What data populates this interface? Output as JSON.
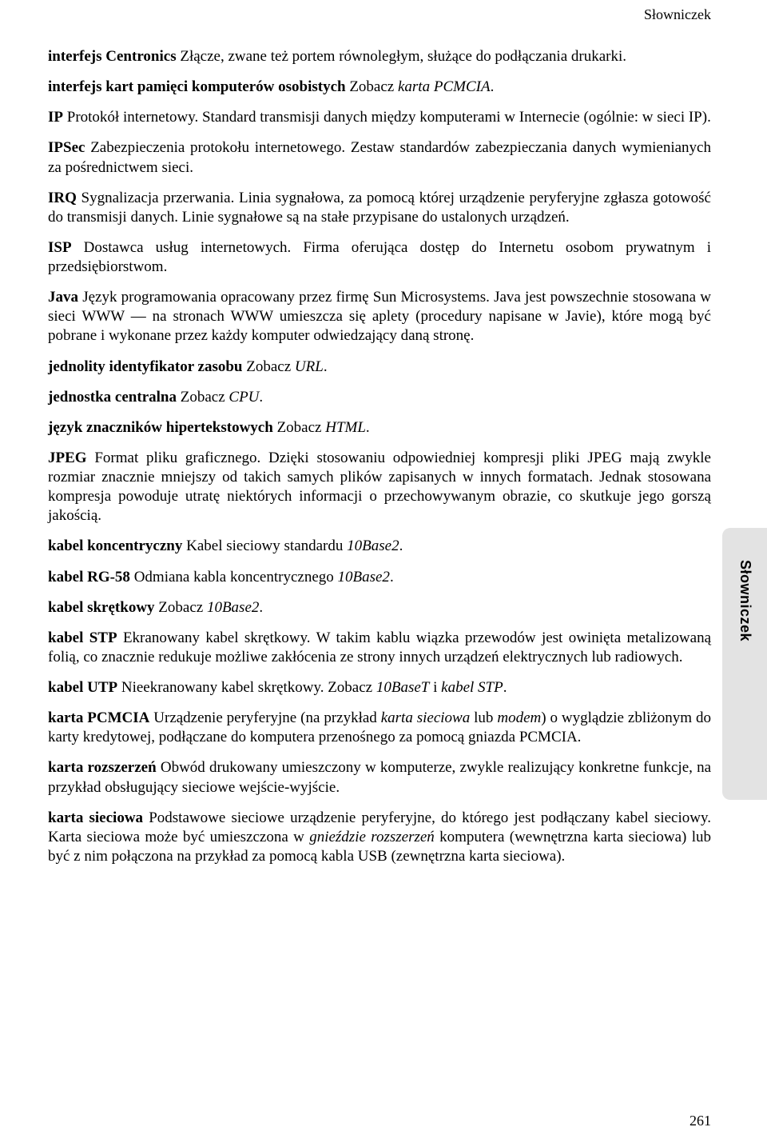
{
  "header": {
    "section": "Słowniczek"
  },
  "sideTab": {
    "label": "Słowniczek"
  },
  "pageNumber": "261",
  "entries": [
    {
      "term": "interfejs Centronics",
      "sep": "   ",
      "def": "Złącze, zwane też portem równoległym, służące do podłączania drukarki."
    },
    {
      "term": "interfejs kart pamięci komputerów osobistych",
      "sep": "   ",
      "def": "Zobacz ",
      "italic1": "karta PCMCIA",
      "after1": "."
    },
    {
      "term": "IP",
      "sep": "   ",
      "def": "Protokół internetowy. Standard transmisji danych między komputerami w Internecie (ogólnie: w sieci IP)."
    },
    {
      "term": "IPSec",
      "sep": "   ",
      "def": "Zabezpieczenia protokołu internetowego. Zestaw standardów zabezpieczania danych wymienianych za pośrednictwem sieci."
    },
    {
      "term": "IRQ",
      "sep": "   ",
      "def": "Sygnalizacja przerwania. Linia sygnałowa, za pomocą której urządzenie peryferyjne zgłasza gotowość do transmisji danych. Linie sygnałowe są na stałe przypisane do ustalonych urządzeń."
    },
    {
      "term": "ISP",
      "sep": "   ",
      "def": "Dostawca usług internetowych. Firma oferująca dostęp do Internetu osobom prywatnym i przedsiębiorstwom."
    },
    {
      "term": "Java",
      "sep": "   ",
      "def": "Język programowania opracowany przez firmę Sun Microsystems. Java jest powszechnie stosowana w sieci WWW — na stronach WWW umieszcza się aplety (procedury napisane w Javie), które mogą być pobrane i wykonane przez każdy komputer odwiedzający daną stronę."
    },
    {
      "term": "jednolity identyfikator zasobu",
      "sep": "   ",
      "def": "Zobacz ",
      "italic1": "URL",
      "after1": "."
    },
    {
      "term": "jednostka centralna",
      "sep": "   ",
      "def": "Zobacz ",
      "italic1": "CPU",
      "after1": "."
    },
    {
      "term": "język znaczników hipertekstowych",
      "sep": "   ",
      "def": "Zobacz ",
      "italic1": "HTML",
      "after1": "."
    },
    {
      "term": "JPEG",
      "sep": "   ",
      "def": "Format pliku graficznego. Dzięki stosowaniu odpowiedniej kompresji pliki JPEG mają zwykle rozmiar znacznie mniejszy od takich samych plików zapisanych w innych formatach. Jednak stosowana kompresja powoduje utratę niektórych informacji o przechowywanym obrazie, co skutkuje jego gorszą jakością."
    },
    {
      "term": "kabel koncentryczny",
      "sep": "   ",
      "def": "Kabel sieciowy standardu ",
      "italic1": "10Base2",
      "after1": "."
    },
    {
      "term": "kabel RG-58",
      "sep": "   ",
      "def": "Odmiana kabla koncentrycznego ",
      "italic1": "10Base2",
      "after1": "."
    },
    {
      "term": "kabel skrętkowy",
      "sep": "   ",
      "def": "Zobacz ",
      "italic1": "10Base2",
      "after1": "."
    },
    {
      "term": "kabel STP",
      "sep": "   ",
      "def": "Ekranowany kabel skrętkowy. W takim kablu wiązka przewodów jest owinięta metalizowaną folią, co znacznie redukuje możliwe zakłócenia ze strony innych urządzeń elektrycznych lub radiowych."
    },
    {
      "term": "kabel UTP",
      "sep": "   ",
      "def": "Nieekranowany kabel skrętkowy. Zobacz ",
      "italic1": "10BaseT",
      "after1": " i ",
      "italic2": "kabel STP",
      "after2": "."
    },
    {
      "term": "karta PCMCIA",
      "sep": "   ",
      "def": "Urządzenie peryferyjne (na przykład ",
      "italic1": "karta sieciowa",
      "after1": " lub ",
      "italic2": "modem",
      "after2": ") o wyglądzie zbliżonym do karty kredytowej, podłączane do komputera przenośnego za pomocą gniazda PCMCIA."
    },
    {
      "term": "karta rozszerzeń",
      "sep": "   ",
      "def": "Obwód drukowany umieszczony w komputerze, zwykle realizujący konkretne funkcje, na przykład obsługujący sieciowe wejście-wyjście."
    },
    {
      "term": "karta sieciowa",
      "sep": "   ",
      "def": "Podstawowe sieciowe urządzenie peryferyjne, do którego jest podłączany kabel sieciowy. Karta sieciowa może być umieszczona w ",
      "italic1": "gnieździe rozszerzeń",
      "after1": " komputera (wewnętrzna karta sieciowa) lub być z nim połączona na przykład za pomocą kabla USB (zewnętrzna karta sieciowa)."
    }
  ]
}
